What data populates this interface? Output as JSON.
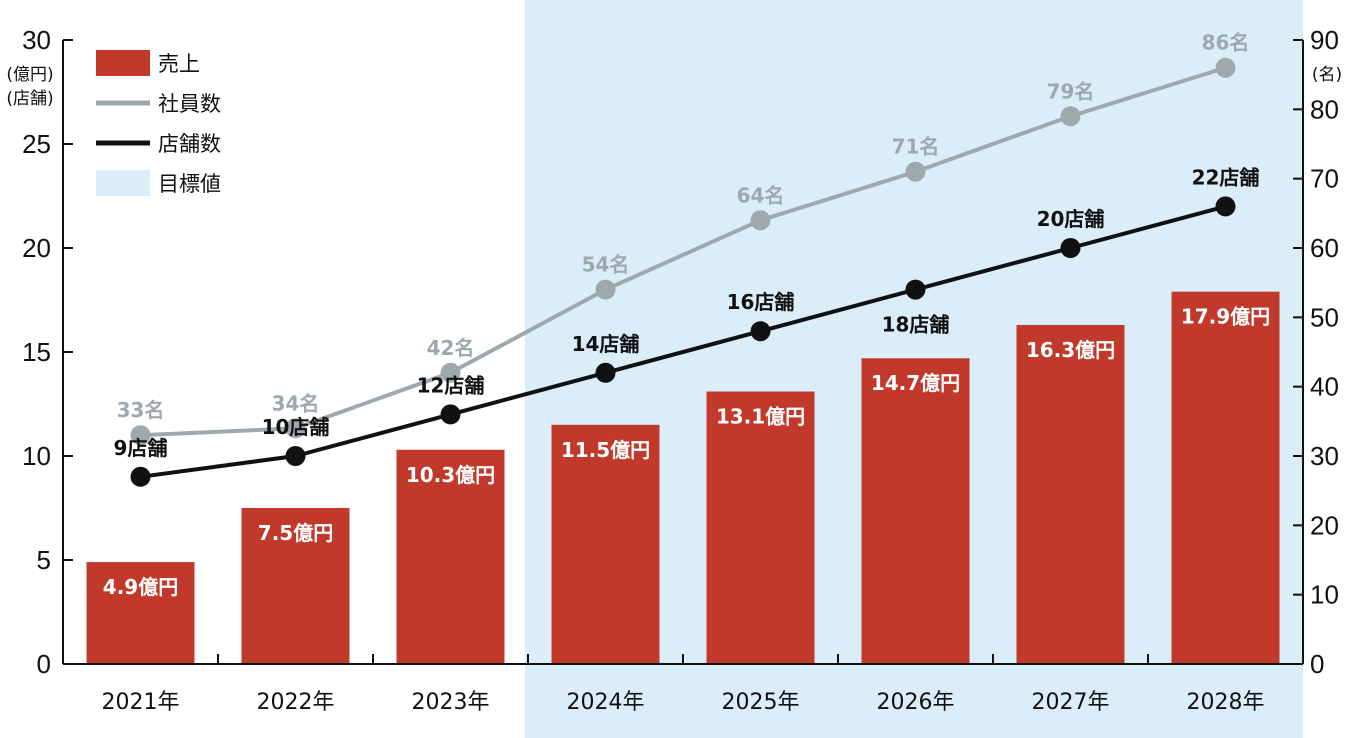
{
  "chart_data": {
    "type": "bar",
    "categories": [
      "2021年",
      "2022年",
      "2023年",
      "2024年",
      "2025年",
      "2026年",
      "2027年",
      "2028年"
    ],
    "series": [
      {
        "name": "売上",
        "type": "bar",
        "axis": "left",
        "color": "#c0392b",
        "values": [
          4.9,
          7.5,
          10.3,
          11.5,
          13.1,
          14.7,
          16.3,
          17.9
        ],
        "labels": [
          "4.9億円",
          "7.5億円",
          "10.3億円",
          "11.5億円",
          "13.1億円",
          "14.7億円",
          "16.3億円",
          "17.9億円"
        ]
      },
      {
        "name": "社員数",
        "type": "line",
        "axis": "right",
        "color": "#9ea9ae",
        "values": [
          33,
          34,
          42,
          54,
          64,
          71,
          79,
          86
        ],
        "labels": [
          "33名",
          "34名",
          "42名",
          "54名",
          "64名",
          "71名",
          "79名",
          "86名"
        ]
      },
      {
        "name": "店舗数",
        "type": "line",
        "axis": "left",
        "color": "#111111",
        "values": [
          9,
          10,
          12,
          14,
          16,
          18,
          20,
          22
        ],
        "labels": [
          "9店舗",
          "10店舗",
          "12店舗",
          "14店舗",
          "16店舗",
          "18店舗",
          "20店舗",
          "22店舗"
        ]
      }
    ],
    "target_region": {
      "label": "目標値",
      "from_category": "2024年",
      "to_category": "2028年",
      "color": "#dcedfa"
    },
    "legend": {
      "placement": "top-left",
      "items": [
        {
          "label": "売上",
          "kind": "bar",
          "color": "#c0392b"
        },
        {
          "label": "社員数",
          "kind": "line",
          "color": "#9ea9ae"
        },
        {
          "label": "店舗数",
          "kind": "line",
          "color": "#111111"
        },
        {
          "label": "目標値",
          "kind": "area",
          "color": "#dcedfa"
        }
      ]
    },
    "y_left": {
      "range": [
        0,
        30
      ],
      "ticks": [
        0,
        5,
        10,
        15,
        20,
        25,
        30
      ],
      "tick_labels": [
        "0",
        "5",
        "10",
        "15",
        "20",
        "25",
        "30"
      ],
      "units": [
        "(億円)",
        "(店舗)"
      ]
    },
    "y_right": {
      "range": [
        0,
        90
      ],
      "ticks": [
        0,
        10,
        20,
        30,
        40,
        50,
        60,
        70,
        80,
        90
      ],
      "tick_labels": [
        "0",
        "10",
        "20",
        "30",
        "40",
        "50",
        "60",
        "70",
        "80",
        "90"
      ],
      "units": [
        "(名)"
      ]
    },
    "grid": false
  }
}
